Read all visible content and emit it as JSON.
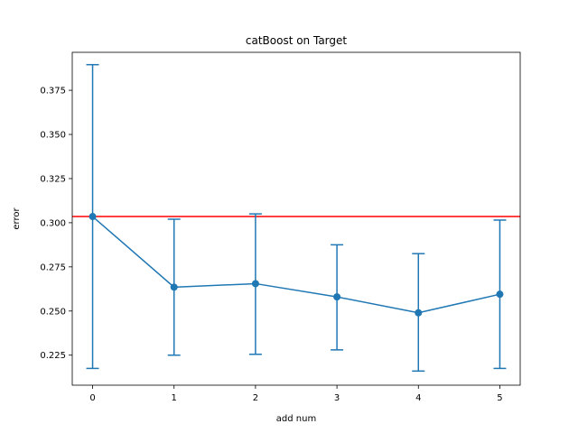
{
  "chart_data": {
    "type": "line",
    "title": "catBoost on Target",
    "xlabel": "add num",
    "ylabel": "error",
    "x": [
      0,
      1,
      2,
      3,
      4,
      5
    ],
    "xticks": [
      "0",
      "1",
      "2",
      "3",
      "4",
      "5"
    ],
    "yticks": [
      "0.225",
      "0.250",
      "0.275",
      "0.300",
      "0.325",
      "0.350",
      "0.375"
    ],
    "ytick_values": [
      0.225,
      0.25,
      0.275,
      0.3,
      0.325,
      0.35,
      0.375
    ],
    "xlim": [
      -0.25,
      5.25
    ],
    "ylim": [
      0.208,
      0.3965
    ],
    "grid": false,
    "series": [
      {
        "values": [
          0.3035,
          0.2635,
          0.2655,
          0.258,
          0.249,
          0.2595
        ],
        "err_low": [
          0.2175,
          0.225,
          0.2255,
          0.228,
          0.216,
          0.2175
        ],
        "err_high": [
          0.3895,
          0.302,
          0.305,
          0.2875,
          0.2825,
          0.3015
        ],
        "color": "#1f77b4",
        "marker": "circle"
      }
    ],
    "hline": {
      "y": 0.3035,
      "color": "#ff0000"
    }
  }
}
